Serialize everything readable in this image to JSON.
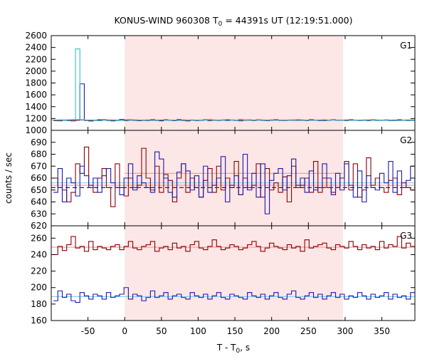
{
  "chart_data": {
    "type": "line",
    "title": {
      "prefix": "KONUS-WIND 960308 T",
      "sub": "0",
      "suffix": " = 44391s UT (12:19:51.000)"
    },
    "xlabel": {
      "prefix": "T - T",
      "sub": "0",
      "suffix": ", s"
    },
    "ylabel": "counts / sec",
    "xlim": [
      -100,
      395
    ],
    "xticks": [
      -50,
      0,
      50,
      100,
      150,
      200,
      250,
      300,
      350
    ],
    "highlight_interval": [
      0,
      297
    ],
    "colors": {
      "red": "#8b0000",
      "blue": "#1a1aaa",
      "cyan": "#33bbcc",
      "pink": "#ee9999",
      "lightblue": "#88ccee",
      "shade": "#fde6e6"
    },
    "bin_width": 6,
    "x_start": -97,
    "panels": [
      {
        "name": "G1",
        "ylim": [
          1000,
          2600
        ],
        "yticks": [
          1000,
          1200,
          1400,
          1600,
          1800,
          2000,
          2200,
          2400,
          2600
        ],
        "background_levels": [
          {
            "color": "pink",
            "value": 1175,
            "style": "solid"
          }
        ],
        "series": [
          {
            "name": "red",
            "color": "red",
            "values": [
              1165,
              1162,
              1170,
              1168,
              1160,
              1172,
              1175,
              1166,
              1158,
              1170,
              1180,
              1174,
              1168,
              1160,
              1172,
              1170,
              1165,
              1177,
              1169,
              1163,
              1171,
              1166,
              1174,
              1168,
              1162,
              1176,
              1170,
              1165,
              1172,
              1168,
              1160,
              1174,
              1166,
              1170,
              1178,
              1164,
              1170,
              1168,
              1172,
              1165,
              1175,
              1168,
              1162,
              1170,
              1176,
              1166,
              1172,
              1168,
              1164,
              1170,
              1174,
              1168,
              1166,
              1172,
              1170,
              1168,
              1174,
              1166,
              1170,
              1172,
              1168,
              1164,
              1170,
              1176,
              1168,
              1172,
              1166,
              1170,
              1174,
              1168,
              1170,
              1166,
              1172,
              1168,
              1170,
              1174,
              1166,
              1170,
              1168,
              1172,
              1166,
              1170,
              1174
            ]
          },
          {
            "name": "blue",
            "color": "blue",
            "values": [
              1170,
              1175,
              1172,
              1168,
              1180,
              1176,
              1785,
              1174,
              1170,
              1168,
              1165,
              1180,
              1176,
              1172,
              1168,
              1185,
              1178,
              1172,
              1175,
              1170,
              1168,
              1176,
              1180,
              1172,
              1170,
              1178,
              1174,
              1168,
              1182,
              1176,
              1170,
              1174,
              1172,
              1168,
              1176,
              1180,
              1172,
              1170,
              1175,
              1178,
              1172,
              1168,
              1180,
              1176,
              1170,
              1174,
              1178,
              1172,
              1168,
              1176,
              1180,
              1174,
              1170,
              1172,
              1176,
              1178,
              1170,
              1174,
              1180,
              1172,
              1168,
              1176,
              1174,
              1178,
              1170,
              1172,
              1176,
              1180,
              1172,
              1168,
              1174,
              1176,
              1178,
              1172,
              1170,
              1176,
              1174,
              1168,
              1180,
              1172,
              1176,
              1174,
              1170
            ]
          },
          {
            "name": "cyan",
            "color": "cyan",
            "values": [
              1175,
              1172,
              1170,
              1178,
              1176,
              2375,
              1180,
              1172,
              1174,
              1170,
              1168,
              1172,
              1175,
              1170,
              1172,
              1168,
              1174,
              1170,
              1176,
              1172,
              1170,
              1174,
              1168,
              1172,
              1176,
              1170,
              1174,
              1172,
              1168,
              1176,
              1172,
              1170,
              1174,
              1170,
              1172,
              1176,
              1170,
              1174,
              1172,
              1168,
              1174,
              1170,
              1172,
              1176,
              1170,
              1172,
              1174,
              1168,
              1172,
              1176,
              1170,
              1174,
              1172,
              1170,
              1176,
              1172,
              1168,
              1174,
              1170,
              1172,
              1176,
              1170,
              1174,
              1172,
              1168,
              1172,
              1176,
              1170,
              1174,
              1172,
              1170,
              1176,
              1172,
              1168,
              1174,
              1170,
              1172,
              1176,
              1170,
              1174,
              1172,
              1168,
              1172
            ]
          }
        ]
      },
      {
        "name": "G2",
        "ylim": [
          620,
          700
        ],
        "yticks": [
          620,
          630,
          640,
          650,
          660,
          670,
          680,
          690
        ],
        "background_levels": [
          {
            "color": "red",
            "value": 652,
            "style": "dashed"
          },
          {
            "color": "pink",
            "value": 664,
            "style": "solid",
            "x_range": [
              0,
              297
            ]
          },
          {
            "color": "lightblue",
            "value": 656,
            "style": "solid"
          },
          {
            "color": "pink",
            "value": 654,
            "style": "solid"
          }
        ],
        "series": [
          {
            "name": "red",
            "color": "red",
            "values": [
              660,
              652,
              650,
              640,
              648,
              672,
              664,
              686,
              654,
              648,
              660,
              668,
              652,
              636,
              672,
              652,
              645,
              660,
              652,
              654,
              685,
              660,
              650,
              670,
              648,
              663,
              658,
              640,
              660,
              672,
              648,
              660,
              652,
              644,
              658,
              668,
              648,
              670,
              650,
              660,
              652,
              674,
              646,
              660,
              652,
              654,
              672,
              644,
              668,
              650,
              656,
              648,
              661,
              640,
              670,
              652,
              654,
              660,
              648,
              674,
              648,
              660,
              652,
              648,
              652,
              660,
              674,
              650,
              672,
              644,
              650,
              677,
              654,
              660,
              652,
              648,
              658,
              660,
              646,
              656,
              652,
              650,
              660
            ]
          },
          {
            "name": "blue",
            "color": "blue",
            "values": [
              648,
              668,
              640,
              660,
              656,
              645,
              670,
              662,
              652,
              660,
              648,
              662,
              668,
              656,
              652,
              646,
              660,
              672,
              650,
              662,
              656,
              652,
              648,
              682,
              676,
              660,
              648,
              644,
              665,
              672,
              666,
              650,
              662,
              644,
              670,
              648,
              654,
              660,
              678,
              640,
              654,
              662,
              646,
              680,
              650,
              664,
              644,
              672,
              630,
              658,
              664,
              668,
              650,
              662,
              676,
              654,
              660,
              648,
              666,
              650,
              652,
              672,
              660,
              646,
              664,
              650,
              672,
              654,
              644,
              666,
              640,
              662,
              652,
              650,
              664,
              656,
              674,
              648,
              666,
              652,
              658,
              670,
              650
            ]
          }
        ]
      },
      {
        "name": "G3",
        "ylim": [
          160,
          275
        ],
        "yticks": [
          160,
          180,
          200,
          220,
          240,
          260
        ],
        "background_levels": [
          {
            "color": "pink",
            "value": 249,
            "style": "solid"
          },
          {
            "color": "lightblue",
            "value": 189,
            "style": "solid"
          }
        ],
        "series": [
          {
            "name": "red",
            "color": "red",
            "values": [
              240,
              250,
              245,
              252,
              262,
              248,
              250,
              244,
              256,
              246,
              250,
              248,
              246,
              250,
              252,
              246,
              250,
              256,
              248,
              246,
              250,
              252,
              256,
              244,
              248,
              250,
              246,
              254,
              248,
              250,
              244,
              252,
              256,
              248,
              246,
              250,
              258,
              250,
              246,
              248,
              252,
              250,
              246,
              248,
              252,
              256,
              250,
              244,
              248,
              254,
              250,
              248,
              246,
              252,
              248,
              250,
              244,
              258,
              248,
              250,
              252,
              254,
              248,
              246,
              252,
              250,
              248,
              256,
              250,
              246,
              252,
              248,
              250,
              246,
              256,
              248,
              252,
              250,
              262,
              248,
              254,
              250,
              246
            ]
          },
          {
            "name": "blue",
            "color": "blue",
            "values": [
              184,
              196,
              188,
              192,
              184,
              182,
              194,
              190,
              186,
              192,
              190,
              186,
              194,
              188,
              190,
              192,
              200,
              186,
              192,
              190,
              184,
              188,
              196,
              188,
              190,
              194,
              186,
              190,
              192,
              188,
              186,
              194,
              190,
              188,
              192,
              186,
              190,
              194,
              188,
              186,
              192,
              190,
              188,
              186,
              194,
              190,
              188,
              192,
              186,
              190,
              194,
              188,
              186,
              192,
              196,
              188,
              186,
              190,
              194,
              188,
              192,
              186,
              190,
              194,
              188,
              192,
              186,
              190,
              188,
              194,
              190,
              186,
              192,
              188,
              190,
              194,
              186,
              192,
              188,
              190,
              186,
              194,
              190
            ]
          }
        ]
      }
    ]
  }
}
